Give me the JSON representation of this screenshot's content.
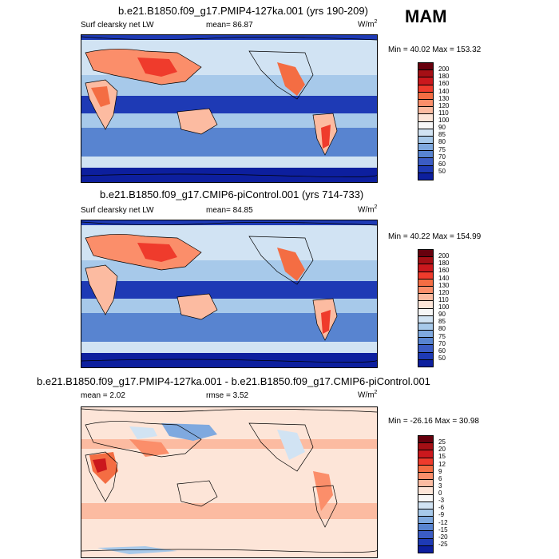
{
  "season": "MAM",
  "panels": [
    {
      "title": "b.e21.B1850.f09_g17.PMIP4-127ka.001 (yrs 190-209)",
      "variable": "Surf clearsky net LW",
      "stat": "mean=  86.87",
      "units_base": "W/m",
      "units_exp": "2",
      "minmax": "Min =  40.02 Max = 153.32",
      "colorbar_labels": [
        "200",
        "180",
        "160",
        "140",
        "130",
        "120",
        "110",
        "100",
        "90",
        "85",
        "80",
        "75",
        "70",
        "60",
        "50"
      ],
      "colors": [
        "#67000d",
        "#a50f15",
        "#cb181d",
        "#ef3b2c",
        "#f46d43",
        "#fb8e6a",
        "#fcbba1",
        "#fde5d8",
        "#f7f7f7",
        "#d1e3f3",
        "#a7c9ea",
        "#7fa9df",
        "#5884d0",
        "#3b5cc4",
        "#1e3ab5",
        "#0d1f9e"
      ]
    },
    {
      "title": "b.e21.B1850.f09_g17.CMIP6-piControl.001 (yrs 714-733)",
      "variable": "Surf clearsky net LW",
      "stat": "mean=  84.85",
      "units_base": "W/m",
      "units_exp": "2",
      "minmax": "Min =  40.22 Max = 154.99",
      "colorbar_labels": [
        "200",
        "180",
        "160",
        "140",
        "130",
        "120",
        "110",
        "100",
        "90",
        "85",
        "80",
        "75",
        "70",
        "60",
        "50"
      ],
      "colors": [
        "#67000d",
        "#a50f15",
        "#cb181d",
        "#ef3b2c",
        "#f46d43",
        "#fb8e6a",
        "#fcbba1",
        "#fde5d8",
        "#f7f7f7",
        "#d1e3f3",
        "#a7c9ea",
        "#7fa9df",
        "#5884d0",
        "#3b5cc4",
        "#1e3ab5",
        "#0d1f9e"
      ]
    },
    {
      "title": "b.e21.B1850.f09_g17.PMIP4-127ka.001 - b.e21.B1850.f09_g17.CMIP6-piControl.001",
      "variable": "mean =   2.02",
      "stat": "rmse =   3.52",
      "units_base": "W/m",
      "units_exp": "2",
      "minmax": "Min = -26.16 Max =  30.98",
      "colorbar_labels": [
        "25",
        "20",
        "15",
        "12",
        "9",
        "6",
        "3",
        "0",
        "-3",
        "-6",
        "-9",
        "-12",
        "-15",
        "-20",
        "-25"
      ],
      "colors": [
        "#67000d",
        "#a50f15",
        "#cb181d",
        "#ef3b2c",
        "#f46d43",
        "#fb8e6a",
        "#fcbba1",
        "#fde5d8",
        "#f7f7f7",
        "#d1e3f3",
        "#a7c9ea",
        "#7fa9df",
        "#5884d0",
        "#3b5cc4",
        "#1e3ab5",
        "#0d1f9e"
      ]
    }
  ]
}
